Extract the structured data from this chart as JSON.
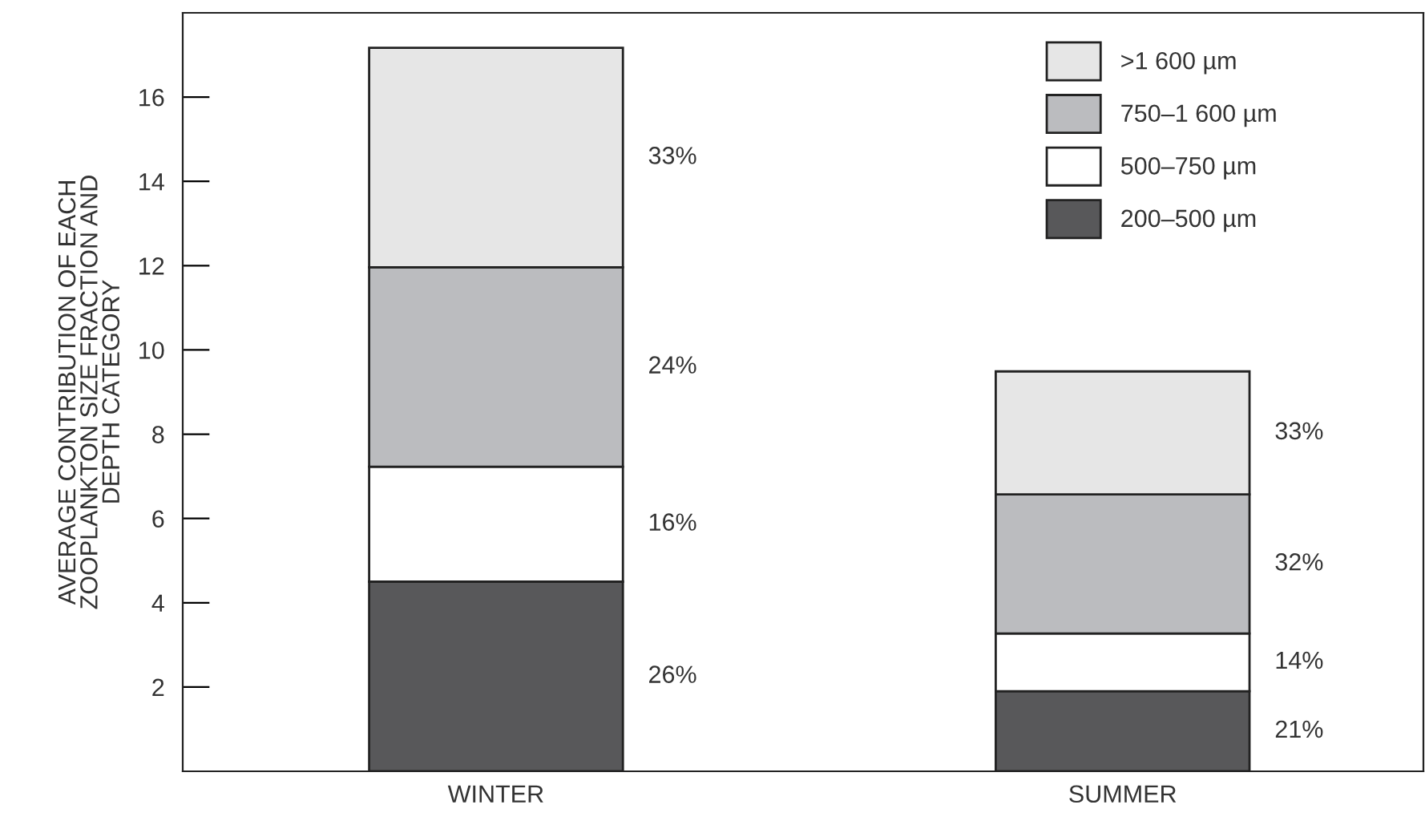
{
  "chart_data": {
    "type": "bar",
    "stacked": true,
    "ylabel": "AVERAGE CONTRIBUTION OF EACH\nZOOPLANKTON SIZE FRACTION AND\nDEPTH CATEGORY",
    "categories": [
      "WINTER",
      "SUMMER"
    ],
    "series": [
      {
        "name": "200–500 µm",
        "color": "#58585a",
        "values": [
          4.5,
          1.9
        ]
      },
      {
        "name": "500–750 µm",
        "color": "#ffffff",
        "values": [
          2.73,
          1.37
        ]
      },
      {
        "name": "750–1 600 µm",
        "color": "#bbbcbf",
        "values": [
          4.73,
          3.3
        ]
      },
      {
        "name": ">1 600 µm",
        "color": "#e6e6e6",
        "values": [
          5.21,
          2.92
        ]
      }
    ],
    "annotations": [
      "26%",
      "16%",
      "24%",
      "33%",
      "21%",
      "14%",
      "32%",
      "33%"
    ],
    "ylim": [
      0,
      18
    ],
    "yticks": [
      2,
      4,
      6,
      8,
      10,
      12,
      14,
      16
    ],
    "grid": false,
    "legend": "top right"
  }
}
